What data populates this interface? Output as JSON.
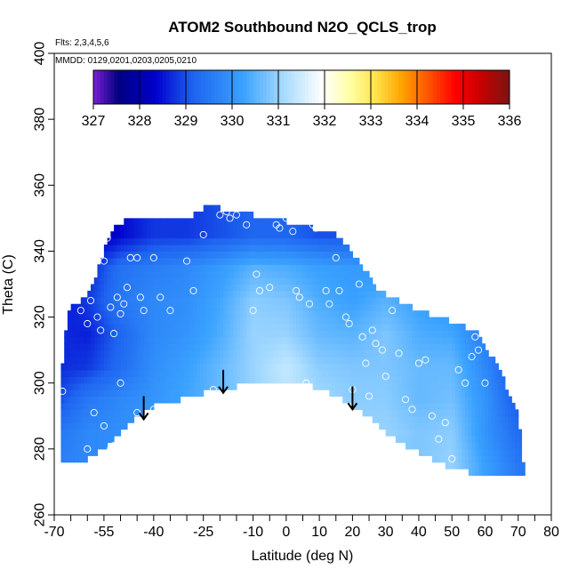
{
  "chart_data": {
    "type": "heatmap",
    "title": "ATOM2 Southbound N2O_QCLS_trop",
    "flights_note": "Flts: 2,3,4,5,6",
    "dates_note": "MMDD: 0129,0201,0203,0205,0210",
    "xlabel": "Latitude (deg N)",
    "ylabel": "Theta (C)",
    "xlim": [
      -70,
      80
    ],
    "ylim": [
      260,
      400
    ],
    "x_ticks": [
      -70,
      -55,
      -40,
      -25,
      -10,
      0,
      10,
      20,
      30,
      40,
      50,
      60,
      70,
      80
    ],
    "x_minor_ticks": [
      -65,
      -60,
      -50,
      -45,
      -35,
      -30,
      -20,
      -15,
      -5,
      5,
      15,
      25,
      35,
      45,
      55,
      65,
      75
    ],
    "y_ticks": [
      260,
      280,
      300,
      320,
      340,
      360,
      380,
      400
    ],
    "colorbar": {
      "min": 327,
      "max": 336,
      "tick_labels": [
        "327",
        "328",
        "329",
        "330",
        "331",
        "332",
        "333",
        "334",
        "335",
        "336"
      ],
      "colors": [
        "#7a1fd6",
        "#000080",
        "#0000cd",
        "#1e64f0",
        "#3aa2ff",
        "#a9dcff",
        "#ffffff",
        "#ffffa0",
        "#ffe14a",
        "#ffa500",
        "#ff5a00",
        "#ff0000",
        "#c80000",
        "#7d1414"
      ],
      "stops": [
        0,
        0.06,
        0.15,
        0.24,
        0.36,
        0.46,
        0.55,
        0.62,
        0.68,
        0.74,
        0.8,
        0.87,
        0.93,
        1.0
      ]
    },
    "field": {
      "lat_grid": [
        -68,
        -60,
        -50,
        -40,
        -30,
        -20,
        -10,
        0,
        10,
        20,
        30,
        40,
        50,
        60,
        70
      ],
      "theta_grid": [
        275,
        285,
        295,
        305,
        315,
        325,
        335,
        345
      ],
      "values": [
        [
          329.7,
          329.8,
          329.9,
          330.0,
          330.1,
          330.3,
          330.5,
          330.6,
          330.7,
          330.8,
          330.8,
          330.8,
          331.0,
          330.2,
          329.5
        ],
        [
          329.5,
          329.8,
          329.9,
          330.1,
          330.3,
          330.5,
          330.8,
          331.0,
          331.1,
          331.0,
          331.0,
          330.8,
          330.9,
          330.0,
          329.3
        ],
        [
          329.0,
          329.5,
          329.8,
          330.0,
          330.3,
          330.6,
          331.0,
          331.3,
          331.1,
          330.9,
          330.9,
          330.6,
          330.7,
          330.0,
          329.0
        ],
        [
          328.7,
          328.8,
          329.3,
          329.9,
          330.2,
          330.6,
          331.0,
          331.4,
          330.9,
          330.8,
          330.8,
          330.6,
          330.6,
          329.8,
          328.8
        ],
        [
          328.7,
          328.6,
          329.2,
          329.8,
          330.0,
          330.4,
          331.0,
          331.0,
          330.6,
          330.5,
          330.8,
          330.4,
          330.3,
          329.6,
          329.0
        ],
        [
          328.5,
          328.8,
          329.5,
          329.8,
          329.9,
          330.3,
          330.9,
          330.8,
          330.4,
          330.2,
          330.5,
          330.2,
          330.0,
          329.4,
          329.0
        ],
        [
          328.5,
          328.6,
          329.4,
          329.6,
          329.8,
          330.1,
          330.5,
          330.4,
          330.2,
          330.1,
          330.0,
          330.0,
          329.8,
          329.4,
          329.0
        ],
        [
          328.0,
          328.0,
          328.4,
          328.8,
          328.8,
          329.0,
          329.2,
          329.2,
          329.0,
          329.0,
          329.0,
          329.0,
          329.0,
          329.0,
          329.0
        ]
      ]
    },
    "data_extent": {
      "upper_boundary": [
        [
          -68,
          300
        ],
        [
          -66,
          322
        ],
        [
          -62,
          325
        ],
        [
          -58,
          330
        ],
        [
          -55,
          340
        ],
        [
          -52,
          348
        ],
        [
          -45,
          350
        ],
        [
          -30,
          350
        ],
        [
          -25,
          353
        ],
        [
          -20,
          353
        ],
        [
          -15,
          352
        ],
        [
          -10,
          351
        ],
        [
          -5,
          350
        ],
        [
          5,
          348
        ],
        [
          15,
          345
        ],
        [
          22,
          337
        ],
        [
          28,
          328
        ],
        [
          34,
          325
        ],
        [
          40,
          322
        ],
        [
          46,
          320
        ],
        [
          52,
          318
        ],
        [
          58,
          315
        ],
        [
          62,
          308
        ],
        [
          66,
          300
        ],
        [
          70,
          290
        ],
        [
          71,
          280
        ],
        [
          72,
          272
        ]
      ],
      "lower_boundary": [
        [
          -68,
          275
        ],
        [
          -60,
          277
        ],
        [
          -55,
          280
        ],
        [
          -50,
          285
        ],
        [
          -45,
          290
        ],
        [
          -40,
          293
        ],
        [
          -32,
          295
        ],
        [
          -25,
          297
        ],
        [
          -15,
          299
        ],
        [
          -8,
          300
        ],
        [
          0,
          300
        ],
        [
          8,
          299
        ],
        [
          15,
          296
        ],
        [
          22,
          292
        ],
        [
          28,
          287
        ],
        [
          34,
          282
        ],
        [
          40,
          279
        ],
        [
          46,
          276
        ],
        [
          50,
          274
        ],
        [
          55,
          273
        ],
        [
          60,
          272
        ],
        [
          66,
          272
        ],
        [
          72,
          272
        ]
      ]
    },
    "obs_points": [
      [
        -67.5,
        297.5
      ],
      [
        -62,
        322
      ],
      [
        -60,
        318
      ],
      [
        -59,
        325
      ],
      [
        -57,
        320
      ],
      [
        -56,
        316
      ],
      [
        -55,
        337
      ],
      [
        -54,
        344
      ],
      [
        -53,
        323
      ],
      [
        -52,
        315
      ],
      [
        -51,
        326
      ],
      [
        -50,
        321
      ],
      [
        -49,
        324
      ],
      [
        -48,
        329
      ],
      [
        -47,
        338
      ],
      [
        -45,
        338
      ],
      [
        -44,
        326
      ],
      [
        -43,
        322
      ],
      [
        -40,
        338
      ],
      [
        -38,
        326
      ],
      [
        -35,
        322
      ],
      [
        -30,
        337
      ],
      [
        -28,
        328
      ],
      [
        -25,
        345
      ],
      [
        -22,
        298
      ],
      [
        -20,
        351
      ],
      [
        -18,
        352
      ],
      [
        -17,
        350
      ],
      [
        -15,
        351
      ],
      [
        -12,
        348
      ],
      [
        -10,
        322
      ],
      [
        -9,
        333
      ],
      [
        -8,
        328
      ],
      [
        -5,
        329
      ],
      [
        -3,
        348
      ],
      [
        -2,
        347
      ],
      [
        0,
        350
      ],
      [
        2,
        346
      ],
      [
        3,
        328
      ],
      [
        4,
        326
      ],
      [
        6,
        300
      ],
      [
        7,
        324
      ],
      [
        8,
        348
      ],
      [
        9,
        347
      ],
      [
        12,
        328
      ],
      [
        13,
        324
      ],
      [
        15,
        338
      ],
      [
        16,
        328
      ],
      [
        18,
        320
      ],
      [
        19,
        318
      ],
      [
        20,
        298
      ],
      [
        21,
        343
      ],
      [
        22,
        330
      ],
      [
        23,
        314
      ],
      [
        24,
        306
      ],
      [
        25,
        296
      ],
      [
        26,
        316
      ],
      [
        27,
        312
      ],
      [
        29,
        310
      ],
      [
        30,
        302
      ],
      [
        32,
        322
      ],
      [
        34,
        309
      ],
      [
        36,
        295
      ],
      [
        38,
        292
      ],
      [
        40,
        306
      ],
      [
        42,
        307
      ],
      [
        44,
        290
      ],
      [
        46,
        283
      ],
      [
        48,
        288
      ],
      [
        50,
        277
      ],
      [
        52,
        304
      ],
      [
        54,
        300
      ],
      [
        56,
        308
      ],
      [
        57,
        314
      ],
      [
        58,
        310
      ],
      [
        60,
        300
      ],
      [
        62,
        315
      ],
      [
        -40,
        292
      ],
      [
        -45,
        291
      ],
      [
        -52,
        281
      ],
      [
        -53,
        280
      ],
      [
        -55,
        287
      ],
      [
        -58,
        291
      ],
      [
        -50,
        300
      ],
      [
        -60,
        280
      ]
    ],
    "arrows": [
      {
        "lat": -43,
        "theta_top": 296,
        "theta_bottom": 289
      },
      {
        "lat": -19,
        "theta_top": 304,
        "theta_bottom": 297
      },
      {
        "lat": 20,
        "theta_top": 299,
        "theta_bottom": 292
      }
    ]
  }
}
